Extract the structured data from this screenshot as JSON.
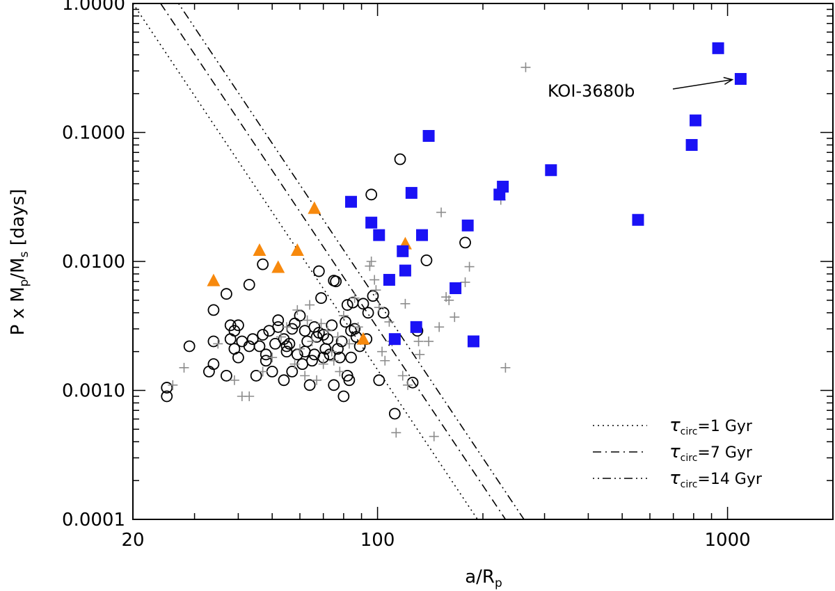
{
  "chart_data": {
    "type": "scatter",
    "title": "",
    "xlabel_main": "a/R",
    "xlabel_sub": "p",
    "ylabel_parts": [
      "P x M",
      "p",
      "/M",
      "s",
      " [days]"
    ],
    "xscale": "log",
    "yscale": "log",
    "xlim": [
      20,
      2000
    ],
    "ylim": [
      0.0001,
      1.0
    ],
    "x_ticks": [
      {
        "value": 20,
        "label": "20"
      },
      {
        "value": 100,
        "label": "100"
      },
      {
        "value": 1000,
        "label": "1000"
      }
    ],
    "y_ticks": [
      {
        "value": 0.0001,
        "label": "0.0001"
      },
      {
        "value": 0.001,
        "label": "0.0010"
      },
      {
        "value": 0.01,
        "label": "0.0100"
      },
      {
        "value": 0.1,
        "label": "0.1000"
      },
      {
        "value": 1.0,
        "label": "1.0000"
      }
    ],
    "series": [
      {
        "name": "circles",
        "marker": "open-circle",
        "color": "#000000",
        "points": [
          [
            25,
            0.0009
          ],
          [
            25,
            0.00105
          ],
          [
            29,
            0.0022
          ],
          [
            33,
            0.0014
          ],
          [
            34,
            0.0024
          ],
          [
            34,
            0.0016
          ],
          [
            34,
            0.0042
          ],
          [
            37,
            0.0056
          ],
          [
            37,
            0.0013
          ],
          [
            38,
            0.0032
          ],
          [
            38,
            0.0025
          ],
          [
            39,
            0.0029
          ],
          [
            39,
            0.0021
          ],
          [
            40,
            0.0032
          ],
          [
            40,
            0.0018
          ],
          [
            41,
            0.0024
          ],
          [
            43,
            0.0066
          ],
          [
            43,
            0.0022
          ],
          [
            44,
            0.0025
          ],
          [
            45,
            0.0013
          ],
          [
            46,
            0.0022
          ],
          [
            47,
            0.0095
          ],
          [
            47,
            0.0027
          ],
          [
            48,
            0.0019
          ],
          [
            48,
            0.0017
          ],
          [
            49,
            0.0029
          ],
          [
            50,
            0.0014
          ],
          [
            51,
            0.0023
          ],
          [
            52,
            0.0031
          ],
          [
            52,
            0.0035
          ],
          [
            54,
            0.0012
          ],
          [
            54,
            0.0025
          ],
          [
            55,
            0.002
          ],
          [
            55,
            0.0022
          ],
          [
            56,
            0.0023
          ],
          [
            57,
            0.003
          ],
          [
            57,
            0.0014
          ],
          [
            58,
            0.0033
          ],
          [
            59,
            0.0019
          ],
          [
            60,
            0.0038
          ],
          [
            61,
            0.0016
          ],
          [
            62,
            0.0029
          ],
          [
            62,
            0.002
          ],
          [
            63,
            0.0024
          ],
          [
            64,
            0.0011
          ],
          [
            65,
            0.0017
          ],
          [
            66,
            0.0031
          ],
          [
            66,
            0.0019
          ],
          [
            67,
            0.0026
          ],
          [
            68,
            0.0028
          ],
          [
            68,
            0.0084
          ],
          [
            69,
            0.0052
          ],
          [
            70,
            0.0018
          ],
          [
            70,
            0.0027
          ],
          [
            71,
            0.0021
          ],
          [
            72,
            0.0025
          ],
          [
            73,
            0.0019
          ],
          [
            74,
            0.0032
          ],
          [
            75,
            0.0071
          ],
          [
            75,
            0.0011
          ],
          [
            76,
            0.007
          ],
          [
            77,
            0.0021
          ],
          [
            78,
            0.0018
          ],
          [
            79,
            0.0024
          ],
          [
            80,
            0.0009
          ],
          [
            81,
            0.0034
          ],
          [
            82,
            0.0013
          ],
          [
            82,
            0.0046
          ],
          [
            83,
            0.0012
          ],
          [
            84,
            0.0029
          ],
          [
            84,
            0.0018
          ],
          [
            85,
            0.0048
          ],
          [
            86,
            0.003
          ],
          [
            87,
            0.0026
          ],
          [
            89,
            0.0022
          ],
          [
            91,
            0.0047
          ],
          [
            93,
            0.0025
          ],
          [
            94,
            0.004
          ],
          [
            96,
            0.033
          ],
          [
            97,
            0.0054
          ],
          [
            101,
            0.0012
          ],
          [
            104,
            0.004
          ],
          [
            112,
            0.00066
          ],
          [
            116,
            0.062
          ],
          [
            126,
            0.00115
          ],
          [
            130,
            0.0029
          ],
          [
            138,
            0.0102
          ],
          [
            178,
            0.014
          ]
        ]
      },
      {
        "name": "crosses",
        "marker": "plus",
        "color": "#8c8c8c",
        "points": [
          [
            26,
            0.0011
          ],
          [
            28,
            0.0015
          ],
          [
            35,
            0.0023
          ],
          [
            39,
            0.0012
          ],
          [
            41,
            0.0009
          ],
          [
            43,
            0.0009
          ],
          [
            47,
            0.0014
          ],
          [
            50,
            0.0018
          ],
          [
            53,
            0.0026
          ],
          [
            55,
            0.0031
          ],
          [
            58,
            0.0016
          ],
          [
            59,
            0.0042
          ],
          [
            60,
            0.0021
          ],
          [
            62,
            0.0013
          ],
          [
            63,
            0.0035
          ],
          [
            64,
            0.0046
          ],
          [
            65,
            0.0024
          ],
          [
            67,
            0.0012
          ],
          [
            69,
            0.0033
          ],
          [
            70,
            0.0016
          ],
          [
            72,
            0.0029
          ],
          [
            74,
            0.002
          ],
          [
            75,
            0.0017
          ],
          [
            77,
            0.0026
          ],
          [
            78,
            0.0014
          ],
          [
            80,
            0.0038
          ],
          [
            83,
            0.0023
          ],
          [
            86,
            0.0052
          ],
          [
            88,
            0.0031
          ],
          [
            95,
            0.0092
          ],
          [
            96,
            0.01
          ],
          [
            98,
            0.0072
          ],
          [
            99,
            0.006
          ],
          [
            101,
            0.0044
          ],
          [
            103,
            0.002
          ],
          [
            105,
            0.0017
          ],
          [
            108,
            0.0034
          ],
          [
            110,
            0.0024
          ],
          [
            113,
            0.00047
          ],
          [
            118,
            0.0013
          ],
          [
            120,
            0.0047
          ],
          [
            122,
            0.0011
          ],
          [
            131,
            0.0024
          ],
          [
            132,
            0.0019
          ],
          [
            140,
            0.0024
          ],
          [
            145,
            0.00044
          ],
          [
            150,
            0.0031
          ],
          [
            152,
            0.024
          ],
          [
            157,
            0.0053
          ],
          [
            160,
            0.005
          ],
          [
            166,
            0.0037
          ],
          [
            178,
            0.0069
          ],
          [
            183,
            0.0091
          ],
          [
            225,
            0.03
          ],
          [
            232,
            0.0015
          ],
          [
            265,
            0.32
          ]
        ]
      },
      {
        "name": "triangles",
        "marker": "filled-triangle",
        "color": "#f7890d",
        "points": [
          [
            34,
            0.0071
          ],
          [
            46,
            0.0122
          ],
          [
            52,
            0.009
          ],
          [
            59,
            0.0122
          ],
          [
            66,
            0.0258
          ],
          [
            91,
            0.0025
          ],
          [
            120,
            0.0137
          ]
        ]
      },
      {
        "name": "squares",
        "marker": "filled-square",
        "color": "#1a12f5",
        "points": [
          [
            84,
            0.029
          ],
          [
            96,
            0.02
          ],
          [
            101,
            0.016
          ],
          [
            108,
            0.0072
          ],
          [
            112,
            0.0025
          ],
          [
            118,
            0.012
          ],
          [
            120,
            0.0085
          ],
          [
            125,
            0.034
          ],
          [
            129,
            0.0031
          ],
          [
            134,
            0.016
          ],
          [
            140,
            0.094
          ],
          [
            167,
            0.0062
          ],
          [
            181,
            0.019
          ],
          [
            188,
            0.0024
          ],
          [
            223,
            0.033
          ],
          [
            228,
            0.038
          ],
          [
            313,
            0.051
          ],
          [
            555,
            0.021
          ],
          [
            790,
            0.08
          ],
          [
            810,
            0.124
          ],
          [
            940,
            0.45
          ],
          [
            1090,
            0.26
          ]
        ]
      }
    ],
    "lines": [
      {
        "name": "tau_circ=1 Gyr",
        "style": "dotted",
        "x": [
          20,
          193
        ],
        "y": [
          1.0,
          0.0001
        ]
      },
      {
        "name": "tau_circ=7 Gyr",
        "style": "dash-dot",
        "x": [
          24,
          232
        ],
        "y": [
          1.0,
          0.0001
        ]
      },
      {
        "name": "tau_circ=14 Gyr",
        "style": "dot-dot-dash",
        "x": [
          27,
          262
        ],
        "y": [
          1.0,
          0.0001
        ]
      }
    ],
    "legend": {
      "position": "bottom-right",
      "entries": [
        {
          "style": "dotted",
          "symbol": "τ",
          "sub": "circ",
          "text": "=1 Gyr"
        },
        {
          "style": "dash-dot",
          "symbol": "τ",
          "sub": "circ",
          "text": "=7 Gyr"
        },
        {
          "style": "dot-dot-dash",
          "symbol": "τ",
          "sub": "circ",
          "text": "=14 Gyr"
        }
      ]
    },
    "annotations": [
      {
        "text": "KOI-3680b",
        "arrow_to": [
          1090,
          0.26
        ]
      }
    ]
  }
}
